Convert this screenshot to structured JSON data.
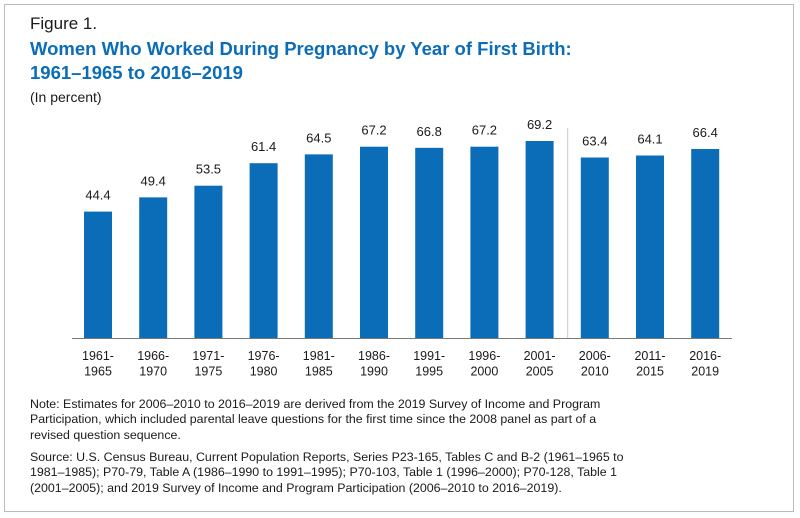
{
  "figure_label": "Figure 1.",
  "title_line1": "Women Who Worked During Pregnancy by Year of First Birth:",
  "title_line2": "1961–1965 to 2016–2019",
  "subtitle": "(In percent)",
  "note_lines": [
    "Note: Estimates for 2006–2010 to 2016–2019 are derived from the 2019 Survey of Income and Program",
    "Participation, which included parental leave questions for the first time since the 2008 panel as part of a",
    "revised question sequence."
  ],
  "source_lines": [
    "Source: U.S. Census Bureau, Current Population Reports, Series P23-165, Tables C and B-2 (1961–1965 to",
    "1981–1985); P70-79, Table A (1986–1990 to 1991–1995); P70-103, Table 1 (1996–2000); P70-128, Table 1",
    "(2001–2005); and 2019 Survey of Income and Program Participation (2006–2010 to 2016–2019)."
  ],
  "colors": {
    "bar": "#0b6cb8",
    "title": "#0b6cb8",
    "divider": "#c8c8c8",
    "baseline": "#7a7a7a"
  },
  "chart_data": {
    "type": "bar",
    "categories": [
      [
        "1961-",
        "1965"
      ],
      [
        "1966-",
        "1970"
      ],
      [
        "1971-",
        "1975"
      ],
      [
        "1976-",
        "1980"
      ],
      [
        "1981-",
        "1985"
      ],
      [
        "1986-",
        "1990"
      ],
      [
        "1991-",
        "1995"
      ],
      [
        "1996-",
        "2000"
      ],
      [
        "2001-",
        "2005"
      ],
      [
        "2006-",
        "2010"
      ],
      [
        "2011-",
        "2015"
      ],
      [
        "2016-",
        "2019"
      ]
    ],
    "values": [
      44.4,
      49.4,
      53.5,
      61.4,
      64.5,
      67.2,
      66.8,
      67.2,
      69.2,
      63.4,
      64.1,
      66.4
    ],
    "value_labels": [
      "44.4",
      "49.4",
      "53.5",
      "61.4",
      "64.5",
      "67.2",
      "66.8",
      "67.2",
      "69.2",
      "63.4",
      "64.1",
      "66.4"
    ],
    "ylim": [
      0,
      69.2
    ],
    "grid": false,
    "divider_after_index": 8
  }
}
